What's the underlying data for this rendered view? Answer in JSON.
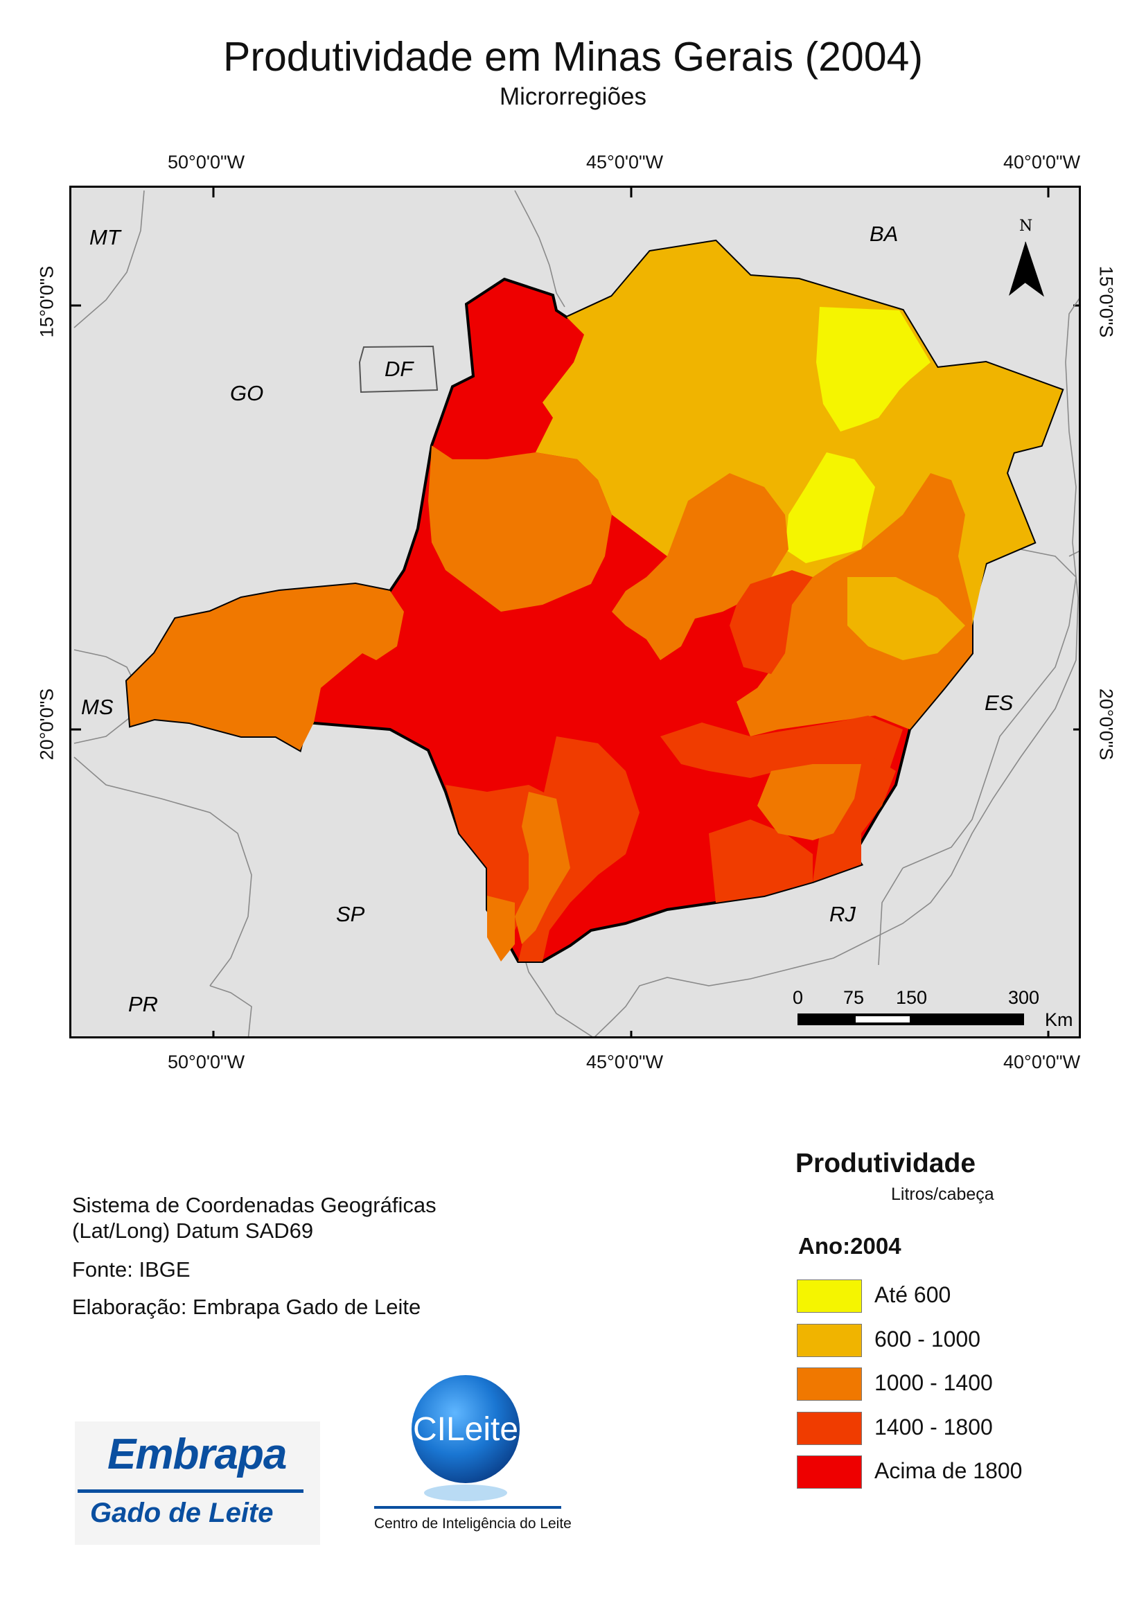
{
  "title": "Produtividade em Minas Gerais (2004)",
  "subtitle": "Microrregiões",
  "coords": {
    "lon_top": [
      "50°0'0\"W",
      "45°0'0\"W",
      "40°0'0\"W"
    ],
    "lon_bottom": [
      "50°0'0\"W",
      "45°0'0\"W",
      "40°0'0\"W"
    ],
    "lat_left": [
      "15°0'0\"S",
      "20°0'0\"S"
    ],
    "lat_right": [
      "15°0'0\"S",
      "20°0'0\"S"
    ]
  },
  "states": {
    "mt": "MT",
    "go": "GO",
    "df": "DF",
    "ba": "BA",
    "ms": "MS",
    "es": "ES",
    "sp": "SP",
    "rj": "RJ",
    "pr": "PR"
  },
  "north_label": "N",
  "scale": {
    "ticks": [
      "0",
      "75",
      "150",
      "300"
    ],
    "unit": "Km"
  },
  "info": {
    "crs_line1": "Sistema de Coordenadas Geográficas",
    "crs_line2": "(Lat/Long) Datum SAD69",
    "source": "Fonte: IBGE",
    "author": "Elaboração: Embrapa Gado de Leite"
  },
  "legend": {
    "title": "Produtividade",
    "units": "Litros/cabeça",
    "year": "Ano:2004",
    "classes": [
      {
        "label": "Até 600",
        "color": "#f5f500"
      },
      {
        "label": "600 - 1000",
        "color": "#f0b400"
      },
      {
        "label": "1000 - 1400",
        "color": "#f07800"
      },
      {
        "label": "1400 - 1800",
        "color": "#f03c00"
      },
      {
        "label": "Acima de 1800",
        "color": "#ee0000"
      }
    ]
  },
  "logos": {
    "embrapa_word": "Embrapa",
    "embrapa_sub": "Gado de Leite",
    "cileite_word": "CILeite",
    "cileite_sub": "Centro de Inteligência do Leite"
  }
}
